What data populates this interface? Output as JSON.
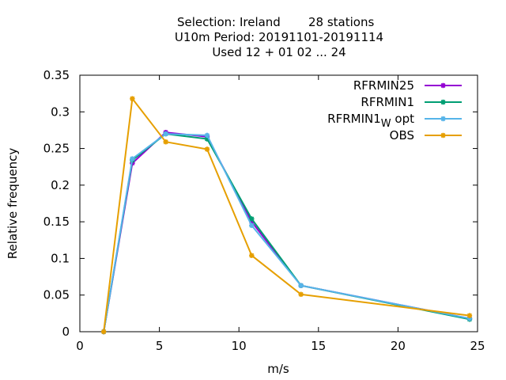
{
  "chart_data": {
    "type": "line",
    "title": {
      "line1_left": "Selection: Ireland",
      "line1_right": "28 stations",
      "line2": "U10m  Period: 20191101-20191114",
      "line3": "Used  12 + 01 02 ... 24"
    },
    "xlabel": "m/s",
    "ylabel": "Relative frequency",
    "xlim": [
      0,
      25
    ],
    "ylim": [
      0,
      0.35
    ],
    "xticks": [
      0,
      5,
      10,
      15,
      20,
      25
    ],
    "yticks": [
      "0",
      "0.05",
      "0.1",
      "0.15",
      "0.2",
      "0.25",
      "0.3",
      "0.35"
    ],
    "grid": false,
    "legend_position": "top-right",
    "series": [
      {
        "name": "RFRMIN25",
        "color": "#9400d3",
        "x": [
          1.5,
          3.3,
          5.4,
          8.0,
          10.8,
          13.9,
          24.5
        ],
        "y": [
          0.0,
          0.23,
          0.272,
          0.266,
          0.15,
          0.063,
          0.018
        ]
      },
      {
        "name": "RFRMIN1",
        "color": "#009e73",
        "x": [
          1.5,
          3.3,
          5.4,
          8.0,
          10.8,
          13.9,
          24.5
        ],
        "y": [
          0.0,
          0.234,
          0.27,
          0.263,
          0.154,
          0.063,
          0.017
        ]
      },
      {
        "name": "RFRMIN1",
        "name_sub": "W",
        "name_suffix": " opt",
        "color": "#56b4e9",
        "x": [
          1.5,
          3.3,
          5.4,
          8.0,
          10.8,
          13.9,
          24.5
        ],
        "y": [
          0.0,
          0.236,
          0.27,
          0.268,
          0.145,
          0.063,
          0.018
        ]
      },
      {
        "name": "OBS",
        "color": "#e69f00",
        "x": [
          1.5,
          3.3,
          5.4,
          8.0,
          10.8,
          13.9,
          24.5
        ],
        "y": [
          0.0,
          0.318,
          0.259,
          0.249,
          0.104,
          0.051,
          0.022
        ]
      }
    ]
  }
}
